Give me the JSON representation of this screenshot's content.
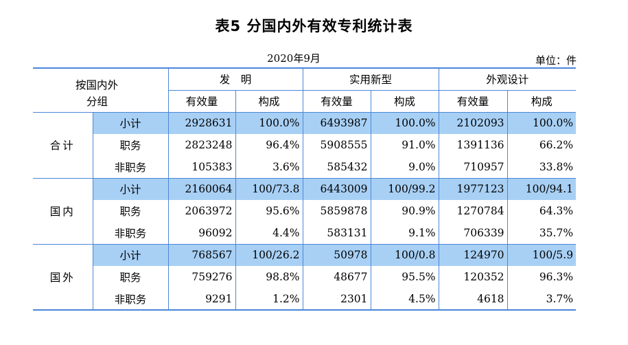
{
  "title": "表5  分国内外有效专利统计表",
  "period": "2020年9月",
  "unit": "单位：件",
  "header": {
    "category_line1": "按国内外",
    "category_line2": "分组",
    "types": [
      "发　明",
      "实用新型",
      "外观设计"
    ],
    "sub_count": "有效量",
    "sub_share": "构成"
  },
  "groups": [
    {
      "name": "合计",
      "rows": [
        {
          "label": "小计",
          "cells": [
            "2928631",
            "100.0%",
            "6493987",
            "100.0%",
            "2102093",
            "100.0%"
          ]
        },
        {
          "label": "职务",
          "cells": [
            "2823248",
            "96.4%",
            "5908555",
            "91.0%",
            "1391136",
            "66.2%"
          ]
        },
        {
          "label": "非职务",
          "cells": [
            "105383",
            "3.6%",
            "585432",
            "9.0%",
            "710957",
            "33.8%"
          ]
        }
      ]
    },
    {
      "name": "国内",
      "rows": [
        {
          "label": "小计",
          "cells": [
            "2160064",
            "100/73.8",
            "6443009",
            "100/99.2",
            "1977123",
            "100/94.1"
          ]
        },
        {
          "label": "职务",
          "cells": [
            "2063972",
            "95.6%",
            "5859878",
            "90.9%",
            "1270784",
            "64.3%"
          ]
        },
        {
          "label": "非职务",
          "cells": [
            "96092",
            "4.4%",
            "583131",
            "9.1%",
            "706339",
            "35.7%"
          ]
        }
      ]
    },
    {
      "name": "国外",
      "rows": [
        {
          "label": "小计",
          "cells": [
            "768567",
            "100/26.2",
            "50978",
            "100/0.8",
            "124970",
            "100/5.9"
          ]
        },
        {
          "label": "职务",
          "cells": [
            "759276",
            "98.8%",
            "48677",
            "95.5%",
            "120352",
            "96.3%"
          ]
        },
        {
          "label": "非职务",
          "cells": [
            "9291",
            "1.2%",
            "2301",
            "4.5%",
            "4618",
            "3.7%"
          ]
        }
      ]
    }
  ],
  "colors": {
    "rule": "#4a86d9",
    "highlight": "#a8d0f5"
  }
}
